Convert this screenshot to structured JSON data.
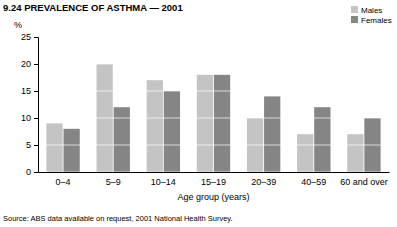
{
  "chart_data": {
    "type": "bar",
    "title": "9.24   PREVALENCE OF ASTHMA — 2001",
    "y_label": "%",
    "x_label": "Age group (years)",
    "source": "Source: ABS data available on request, 2001 National Health Survey.",
    "categories": [
      "0–4",
      "5–9",
      "10–14",
      "15–19",
      "20–39",
      "40–59",
      "60 and over"
    ],
    "series": [
      {
        "name": "Males",
        "color": "#c4c4c4",
        "values": [
          9,
          20,
          17,
          18,
          10,
          7,
          7
        ]
      },
      {
        "name": "Females",
        "color": "#858585",
        "values": [
          8,
          12,
          15,
          18,
          14,
          12,
          10
        ]
      }
    ],
    "ylim": [
      0,
      25
    ],
    "yticks": [
      0,
      5,
      10,
      15,
      20,
      25
    ],
    "grid": true,
    "legend": "top-right"
  }
}
